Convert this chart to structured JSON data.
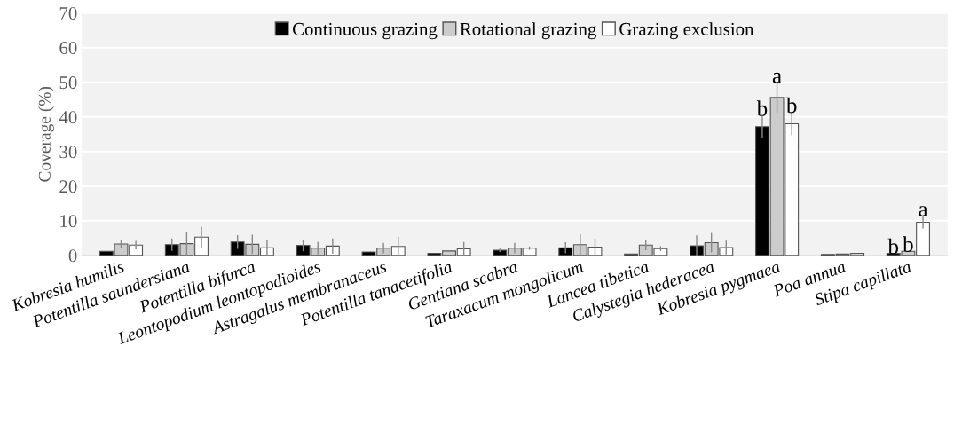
{
  "chart_data": {
    "type": "bar",
    "ylabel": "Coverage (%)",
    "categories": [
      "Kobresia humilis",
      "Potentilla saundersiana",
      "Potentilla bifurca",
      "Leontopodium leontopodioides",
      "Astragalus membranaceus",
      "Potentilla tanacetifolia",
      "Gentiana scabra",
      "Taraxacum mongolicum",
      "Lancea tibetica",
      "Calystegia hederacea",
      "Kobresia pygmaea",
      "Poa annua",
      "Stipa capillata"
    ],
    "series": [
      {
        "name": "Continuous grazing",
        "color": "#000000",
        "values": [
          1.2,
          3.1,
          3.9,
          2.9,
          1.0,
          0.6,
          1.5,
          2.2,
          0.4,
          2.8,
          37.2,
          0.3,
          0.6
        ],
        "errors": [
          null,
          1.8,
          2.0,
          1.7,
          null,
          null,
          0.5,
          1.6,
          null,
          3.0,
          3.2,
          null,
          null
        ],
        "value_labels": [
          null,
          null,
          null,
          null,
          null,
          null,
          null,
          null,
          null,
          null,
          "b",
          null,
          "b"
        ]
      },
      {
        "name": "Rotational grazing",
        "color": "#cccccc",
        "values": [
          3.3,
          3.4,
          3.2,
          2.1,
          2.1,
          1.3,
          2.1,
          3.1,
          3.0,
          3.7,
          45.6,
          0.4,
          1.2
        ],
        "errors": [
          1.2,
          3.5,
          2.8,
          1.8,
          1.5,
          null,
          1.5,
          3.0,
          1.5,
          2.8,
          4.3,
          null,
          null
        ],
        "value_labels": [
          null,
          null,
          null,
          null,
          null,
          null,
          null,
          null,
          null,
          null,
          "a",
          null,
          "b"
        ]
      },
      {
        "name": "Grazing exclusion",
        "color": "#ffffff",
        "values": [
          3.0,
          5.3,
          2.2,
          2.7,
          2.6,
          1.9,
          2.1,
          2.4,
          2.0,
          2.3,
          38.0,
          0.6,
          9.6
        ],
        "errors": [
          1.2,
          3.0,
          2.4,
          2.2,
          2.8,
          2.0,
          0.5,
          2.5,
          0.7,
          2.0,
          3.3,
          null,
          1.8
        ],
        "value_labels": [
          null,
          null,
          null,
          null,
          null,
          null,
          null,
          null,
          null,
          null,
          "b",
          null,
          "a"
        ]
      }
    ],
    "ylim": [
      0,
      70
    ],
    "yticks": [
      0,
      10,
      20,
      30,
      40,
      50,
      60,
      70
    ],
    "grid": "y",
    "legend": "top"
  }
}
